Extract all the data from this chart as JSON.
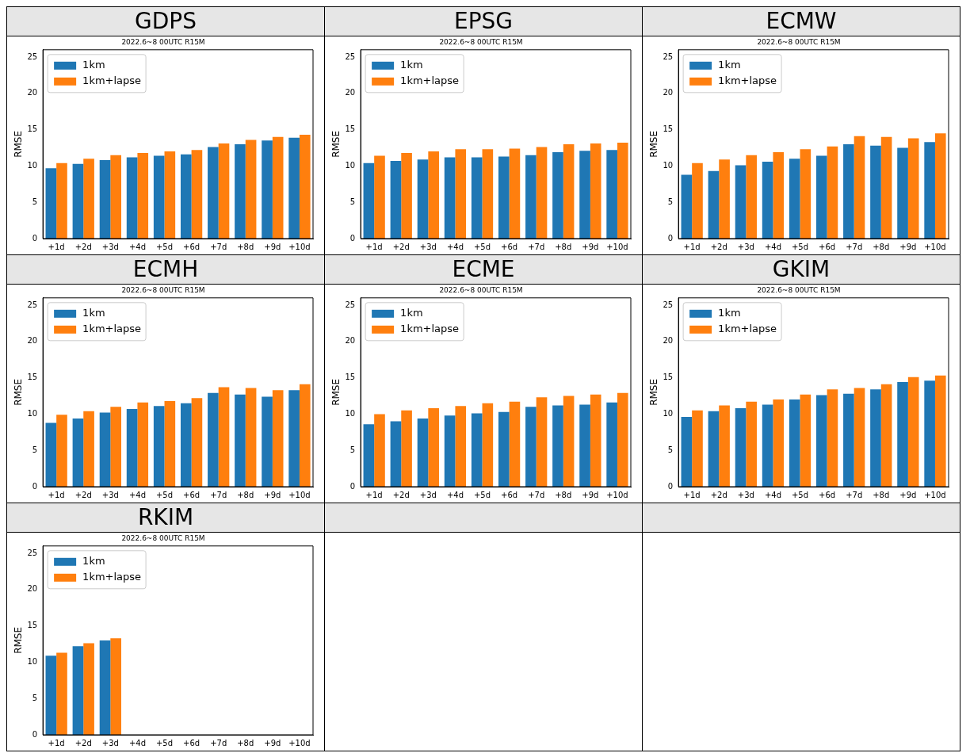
{
  "chart_data": [
    {
      "type": "bar",
      "title": "GDPS",
      "subtitle": "2022.6~8 00UTC R15M",
      "ylabel": "RMSE",
      "categories": [
        "+1d",
        "+2d",
        "+3d",
        "+4d",
        "+5d",
        "+6d",
        "+7d",
        "+8d",
        "+9d",
        "+10d"
      ],
      "ylim": [
        0,
        26
      ],
      "yticks": [
        0,
        5,
        10,
        15,
        20,
        25
      ],
      "grid": false,
      "legend": "top left",
      "series": [
        {
          "name": "1km",
          "color": "#1f77b4",
          "values": [
            9.7,
            10.3,
            10.8,
            11.2,
            11.4,
            11.6,
            12.6,
            13.0,
            13.5,
            13.9
          ]
        },
        {
          "name": "1km+lapse",
          "color": "#ff7f0e",
          "values": [
            10.4,
            11.0,
            11.5,
            11.8,
            12.0,
            12.2,
            13.1,
            13.6,
            14.0,
            14.3
          ]
        }
      ]
    },
    {
      "type": "bar",
      "title": "EPSG",
      "subtitle": "2022.6~8 00UTC R15M",
      "ylabel": "RMSE",
      "categories": [
        "+1d",
        "+2d",
        "+3d",
        "+4d",
        "+5d",
        "+6d",
        "+7d",
        "+8d",
        "+9d",
        "+10d"
      ],
      "ylim": [
        0,
        26
      ],
      "yticks": [
        0,
        5,
        10,
        15,
        20,
        25
      ],
      "grid": false,
      "legend": "top left",
      "series": [
        {
          "name": "1km",
          "color": "#1f77b4",
          "values": [
            10.4,
            10.7,
            10.9,
            11.2,
            11.2,
            11.3,
            11.5,
            11.9,
            12.1,
            12.2
          ]
        },
        {
          "name": "1km+lapse",
          "color": "#ff7f0e",
          "values": [
            11.4,
            11.8,
            12.0,
            12.3,
            12.3,
            12.4,
            12.6,
            13.0,
            13.1,
            13.2
          ]
        }
      ]
    },
    {
      "type": "bar",
      "title": "ECMW",
      "subtitle": "2022.6~8 00UTC R15M",
      "ylabel": "RMSE",
      "categories": [
        "+1d",
        "+2d",
        "+3d",
        "+4d",
        "+5d",
        "+6d",
        "+7d",
        "+8d",
        "+9d",
        "+10d"
      ],
      "ylim": [
        0,
        26
      ],
      "yticks": [
        0,
        5,
        10,
        15,
        20,
        25
      ],
      "grid": false,
      "legend": "top left",
      "series": [
        {
          "name": "1km",
          "color": "#1f77b4",
          "values": [
            8.8,
            9.3,
            10.1,
            10.6,
            11.0,
            11.4,
            13.0,
            12.8,
            12.5,
            13.3
          ]
        },
        {
          "name": "1km+lapse",
          "color": "#ff7f0e",
          "values": [
            10.4,
            10.9,
            11.5,
            11.9,
            12.3,
            12.7,
            14.1,
            14.0,
            13.8,
            14.5
          ]
        }
      ]
    },
    {
      "type": "bar",
      "title": "ECMH",
      "subtitle": "2022.6~8 00UTC R15M",
      "ylabel": "RMSE",
      "categories": [
        "+1d",
        "+2d",
        "+3d",
        "+4d",
        "+5d",
        "+6d",
        "+7d",
        "+8d",
        "+9d",
        "+10d"
      ],
      "ylim": [
        0,
        26
      ],
      "yticks": [
        0,
        5,
        10,
        15,
        20,
        25
      ],
      "grid": false,
      "legend": "top left",
      "series": [
        {
          "name": "1km",
          "color": "#1f77b4",
          "values": [
            8.8,
            9.4,
            10.2,
            10.7,
            11.1,
            11.5,
            12.9,
            12.7,
            12.4,
            13.3
          ]
        },
        {
          "name": "1km+lapse",
          "color": "#ff7f0e",
          "values": [
            9.9,
            10.4,
            11.0,
            11.6,
            11.8,
            12.2,
            13.7,
            13.6,
            13.3,
            14.1
          ]
        }
      ]
    },
    {
      "type": "bar",
      "title": "ECME",
      "subtitle": "2022.6~8 00UTC R15M",
      "ylabel": "RMSE",
      "categories": [
        "+1d",
        "+2d",
        "+3d",
        "+4d",
        "+5d",
        "+6d",
        "+7d",
        "+8d",
        "+9d",
        "+10d"
      ],
      "ylim": [
        0,
        26
      ],
      "yticks": [
        0,
        5,
        10,
        15,
        20,
        25
      ],
      "grid": false,
      "legend": "top left",
      "series": [
        {
          "name": "1km",
          "color": "#1f77b4",
          "values": [
            8.6,
            9.0,
            9.4,
            9.8,
            10.1,
            10.3,
            11.0,
            11.2,
            11.3,
            11.6
          ]
        },
        {
          "name": "1km+lapse",
          "color": "#ff7f0e",
          "values": [
            10.0,
            10.5,
            10.8,
            11.1,
            11.5,
            11.7,
            12.3,
            12.5,
            12.7,
            12.9
          ]
        }
      ]
    },
    {
      "type": "bar",
      "title": "GKIM",
      "subtitle": "2022.6~8 00UTC R15M",
      "ylabel": "RMSE",
      "categories": [
        "+1d",
        "+2d",
        "+3d",
        "+4d",
        "+5d",
        "+6d",
        "+7d",
        "+8d",
        "+9d",
        "+10d"
      ],
      "ylim": [
        0,
        26
      ],
      "yticks": [
        0,
        5,
        10,
        15,
        20,
        25
      ],
      "grid": false,
      "legend": "top left",
      "series": [
        {
          "name": "1km",
          "color": "#1f77b4",
          "values": [
            9.6,
            10.4,
            10.8,
            11.3,
            12.0,
            12.6,
            12.8,
            13.4,
            14.4,
            14.6
          ]
        },
        {
          "name": "1km+lapse",
          "color": "#ff7f0e",
          "values": [
            10.5,
            11.2,
            11.7,
            12.0,
            12.7,
            13.4,
            13.6,
            14.1,
            15.1,
            15.3
          ]
        }
      ]
    },
    {
      "type": "bar",
      "title": "RKIM",
      "subtitle": "2022.6~8 00UTC R15M",
      "ylabel": "RMSE",
      "categories": [
        "+1d",
        "+2d",
        "+3d",
        "+4d",
        "+5d",
        "+6d",
        "+7d",
        "+8d",
        "+9d",
        "+10d"
      ],
      "ylim": [
        0,
        26
      ],
      "yticks": [
        0,
        5,
        10,
        15,
        20,
        25
      ],
      "grid": false,
      "legend": "top left",
      "series": [
        {
          "name": "1km",
          "color": "#1f77b4",
          "values": [
            10.9,
            12.2,
            13.0,
            null,
            null,
            null,
            null,
            null,
            null,
            null
          ]
        },
        {
          "name": "1km+lapse",
          "color": "#ff7f0e",
          "values": [
            11.3,
            12.6,
            13.3,
            null,
            null,
            null,
            null,
            null,
            null,
            null
          ]
        }
      ]
    }
  ]
}
